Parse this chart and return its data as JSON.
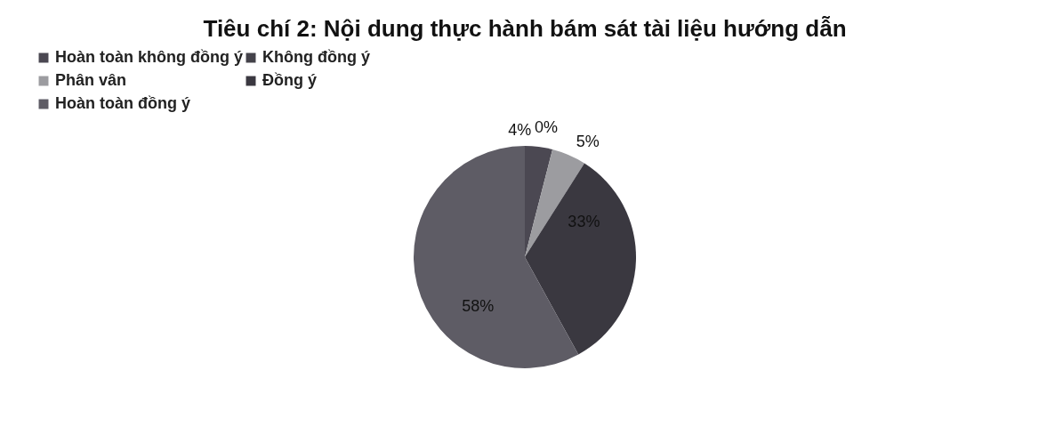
{
  "chart_data": {
    "type": "pie",
    "title": "Tiêu chí 2: Nội dung thực hành bám sát tài liệu hướng dẫn",
    "categories": [
      "Hoàn toàn không đồng ý",
      "Không đồng ý",
      "Phân vân",
      "Đồng ý",
      "Hoàn toàn đồng ý"
    ],
    "values": [
      4,
      0,
      5,
      33,
      58
    ],
    "value_labels": [
      "4%",
      "0%",
      "5%",
      "33%",
      "58%"
    ],
    "colors": [
      "#4b4852",
      "#44424a",
      "#9c9ca0",
      "#3a3840",
      "#5e5c65"
    ],
    "legend": "top"
  }
}
